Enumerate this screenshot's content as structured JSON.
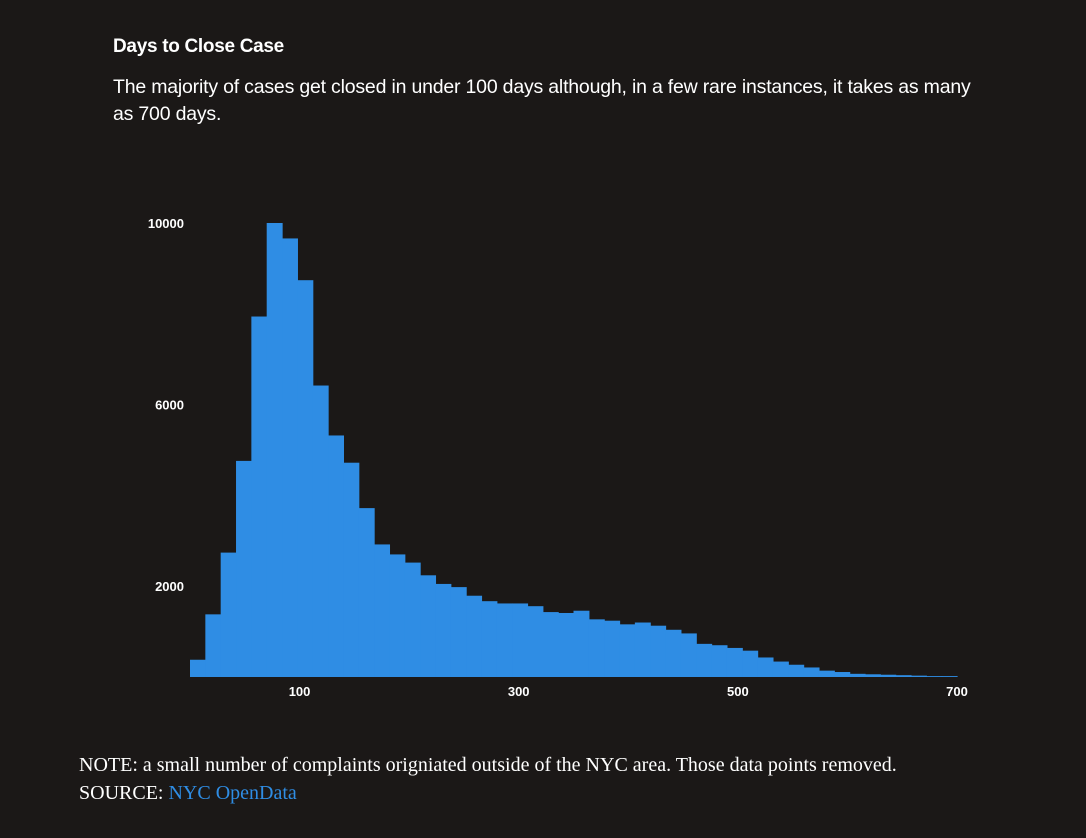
{
  "header": {
    "title": "Days to Close Case",
    "subtitle": "The majority of cases get closed in under 100 days although, in a few rare instances, it takes as many as 700 days."
  },
  "footer": {
    "note": "NOTE: a small number of complaints origniated outside of the NYC area. Those data points removed.",
    "source_prefix": "SOURCE:",
    "source_link": "NYC OpenData"
  },
  "colors": {
    "background": "#1b1817",
    "bar": "#2f8de4",
    "text": "#ffffff",
    "link": "#2f8de4"
  },
  "chart_data": {
    "type": "bar",
    "title": "Days to Close Case",
    "xlabel": "",
    "ylabel": "",
    "bin_width": 14,
    "bin_starts": [
      0,
      14,
      28,
      42,
      56,
      70,
      84,
      98,
      112,
      126,
      140,
      154,
      168,
      182,
      196,
      210,
      224,
      238,
      252,
      266,
      280,
      294,
      308,
      322,
      336,
      350,
      364,
      378,
      392,
      406,
      420,
      434,
      448,
      462,
      476,
      490,
      504,
      518,
      532,
      546,
      560,
      574,
      588,
      602,
      616,
      630,
      644,
      658,
      672,
      686
    ],
    "values": [
      380,
      1380,
      2740,
      4760,
      7940,
      10000,
      9660,
      8740,
      6420,
      5320,
      4720,
      3720,
      2920,
      2700,
      2520,
      2240,
      2050,
      1980,
      1790,
      1670,
      1620,
      1620,
      1560,
      1430,
      1410,
      1460,
      1270,
      1240,
      1160,
      1200,
      1130,
      1040,
      960,
      730,
      700,
      640,
      580,
      430,
      340,
      270,
      210,
      140,
      110,
      70,
      60,
      50,
      40,
      30,
      20,
      20
    ],
    "x_ticks": [
      100,
      300,
      500,
      700
    ],
    "y_ticks": [
      2000,
      6000,
      10000
    ],
    "xlim": [
      0,
      700
    ],
    "ylim": [
      0,
      10000
    ],
    "grid": false,
    "legend": "none"
  }
}
